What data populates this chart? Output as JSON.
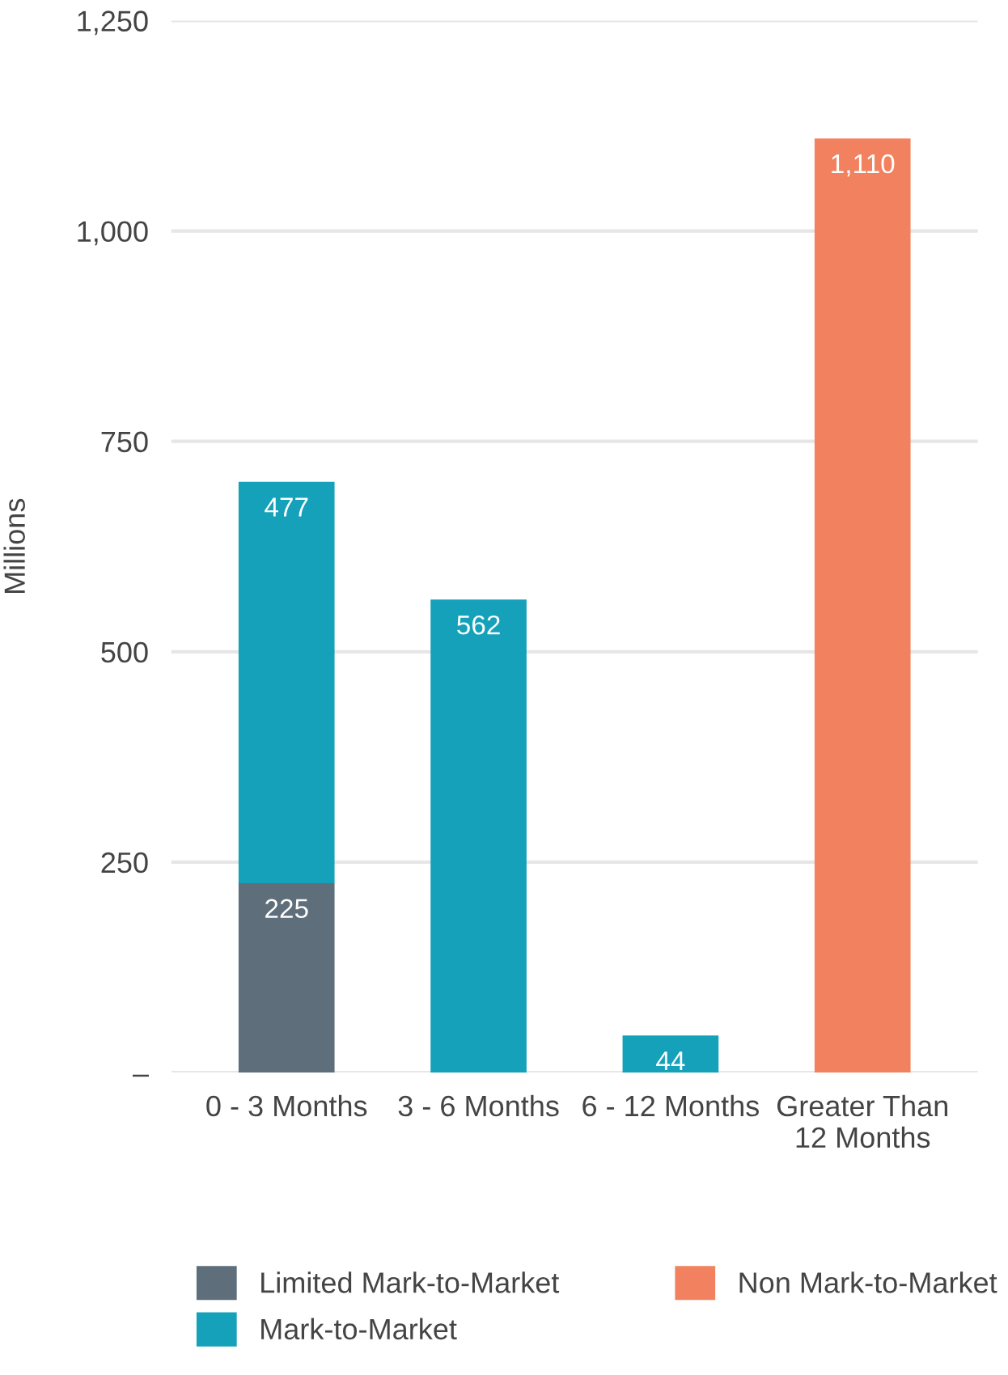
{
  "chart_data": {
    "type": "bar",
    "stacked": true,
    "ylabel": "Millions",
    "categories": [
      "0 - 3 Months",
      "3 - 6 Months",
      "6 - 12 Months",
      "Greater Than 12 Months"
    ],
    "series": [
      {
        "name": "Limited Mark-to-Market",
        "color": "#5e6e7b",
        "values": [
          225,
          null,
          null,
          null
        ],
        "value_labels": [
          "225",
          null,
          null,
          null
        ]
      },
      {
        "name": "Mark-to-Market",
        "color": "#15a1b9",
        "values": [
          477,
          562,
          44,
          null
        ],
        "value_labels": [
          "477",
          "562",
          "44",
          null
        ]
      },
      {
        "name": "Non Mark-to-Market",
        "color": "#f2825f",
        "values": [
          null,
          null,
          null,
          1110
        ],
        "value_labels": [
          null,
          null,
          null,
          "1,110"
        ]
      }
    ],
    "ylim": [
      0,
      1250
    ],
    "yticks": [
      {
        "value": 0,
        "label": "–"
      },
      250,
      500,
      750,
      {
        "value": 1000,
        "label": "1,000"
      },
      {
        "value": 1250,
        "label": "1,250"
      }
    ],
    "grid": "y",
    "legend": "bottom"
  }
}
